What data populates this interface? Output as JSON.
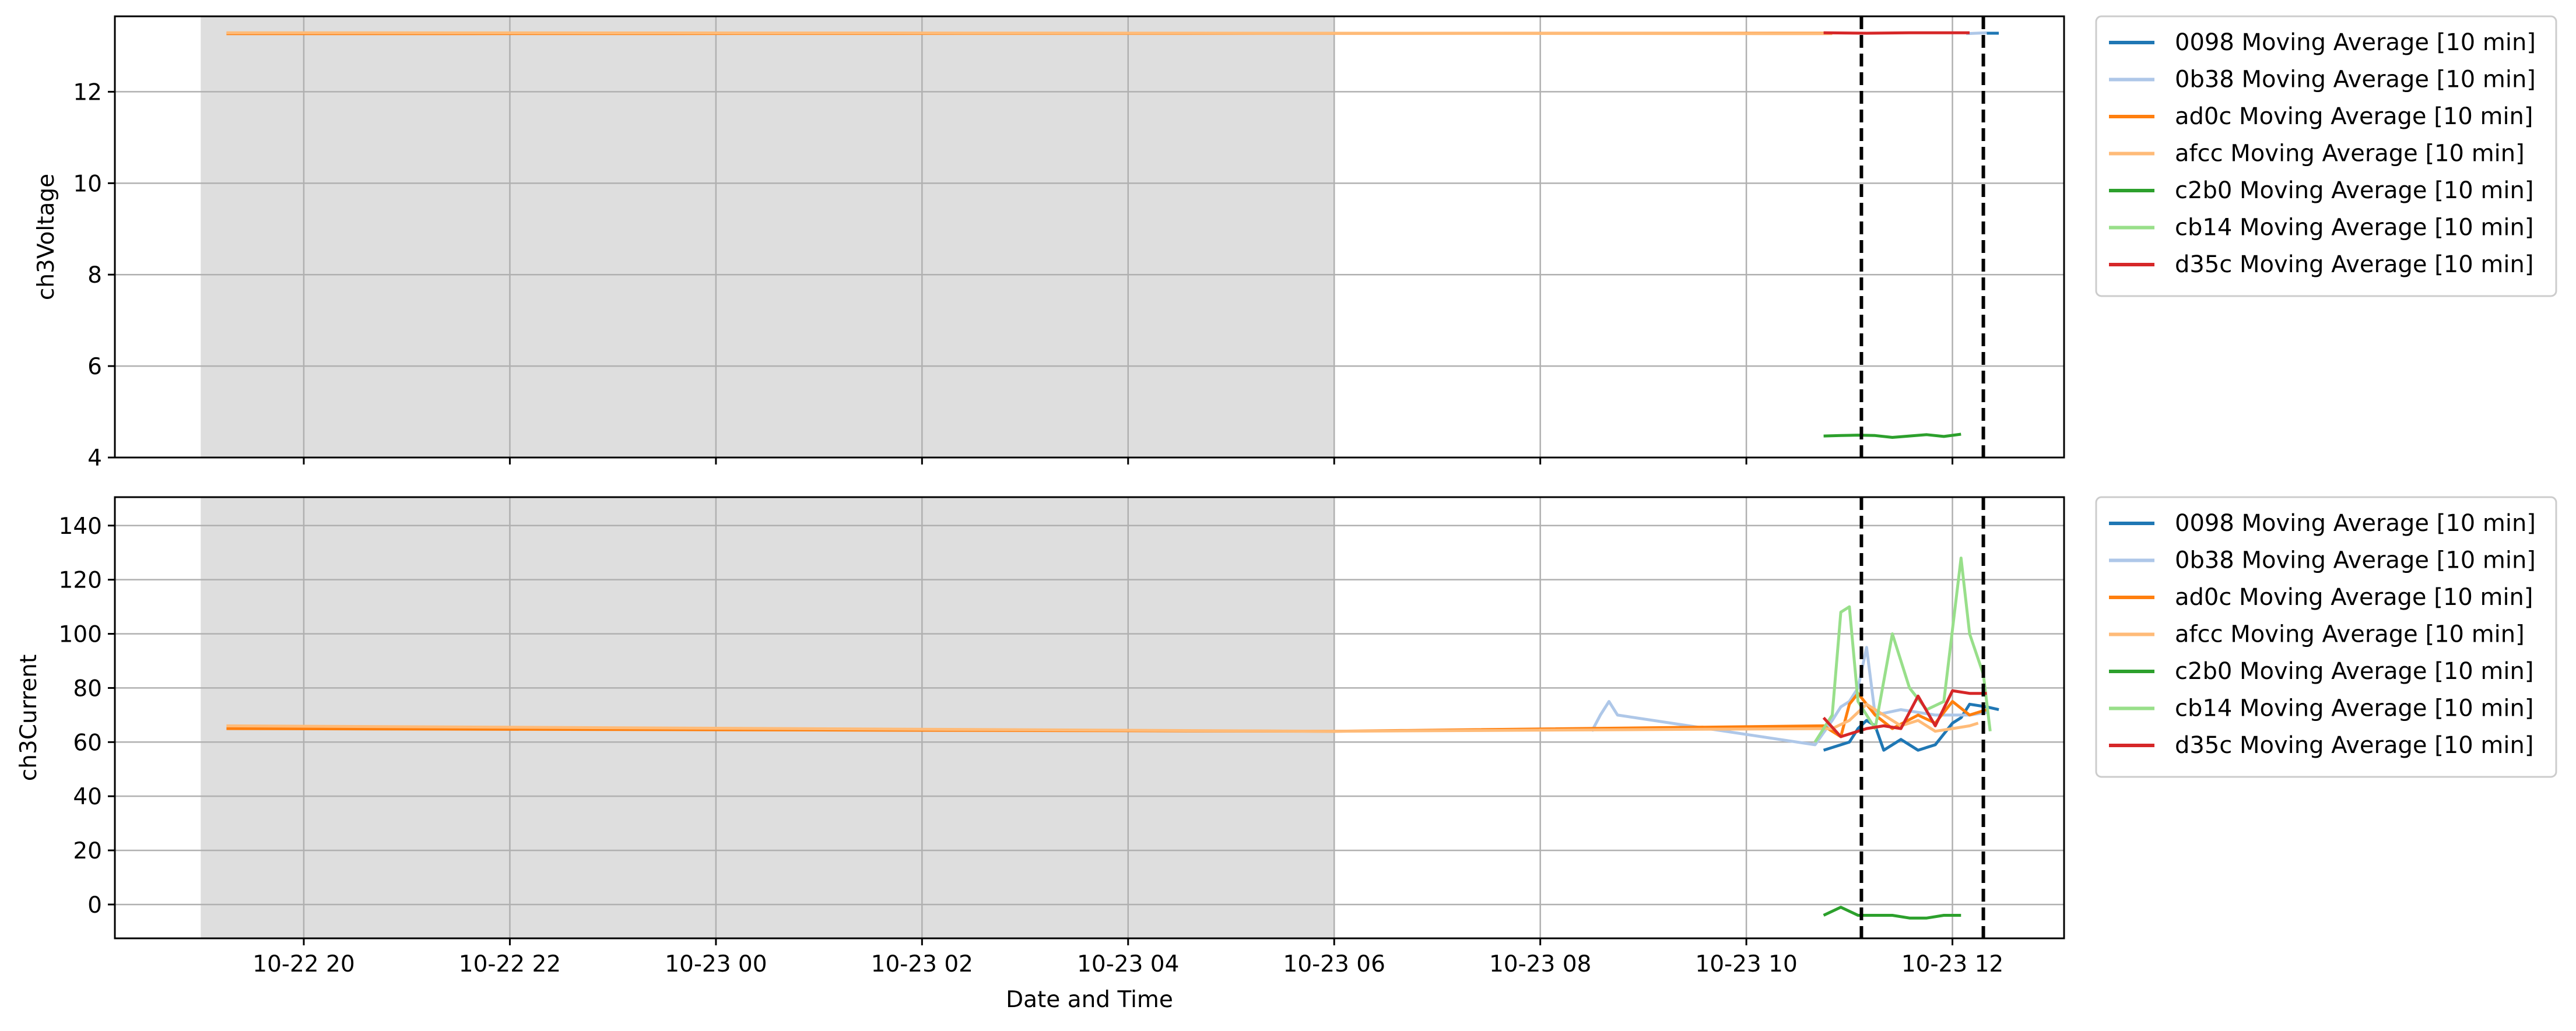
{
  "chart_data": [
    {
      "type": "line",
      "ylabel": "ch3Voltage",
      "xlabel": "",
      "ylim": [
        4.0,
        13.65
      ],
      "yticks": [
        4,
        6,
        8,
        10,
        12
      ],
      "grid": true,
      "shaded_region": {
        "start": "10-22 19:00",
        "end": "10-23 06:00",
        "color": "#dedede"
      },
      "vlines": [
        "10-23 11:07",
        "10-23 12:18"
      ],
      "legend_position": "outside-right",
      "series": [
        {
          "name": "0098 Moving Average [10 min]",
          "color": "#1f77b4",
          "points": [
            [
              "10-23 12:20",
              13.28
            ],
            [
              "10-23 12:27",
              13.28
            ]
          ]
        },
        {
          "name": "0b38 Moving Average [10 min]",
          "color": "#aec7e8",
          "points": [
            [
              "10-23 12:08",
              13.27
            ],
            [
              "10-23 12:20",
              13.29
            ]
          ]
        },
        {
          "name": "ad0c Moving Average [10 min]",
          "color": "#ff7f0e",
          "points": [
            [
              "10-22 19:15",
              13.27
            ],
            [
              "10-23 10:50",
              13.28
            ]
          ]
        },
        {
          "name": "afcc Moving Average [10 min]",
          "color": "#ffbb78",
          "points": [
            [
              "10-22 19:15",
              13.29
            ],
            [
              "10-23 06:00",
              13.28
            ],
            [
              "10-23 10:50",
              13.27
            ]
          ]
        },
        {
          "name": "c2b0 Moving Average [10 min]",
          "color": "#2ca02c",
          "points": [
            [
              "10-23 10:45",
              4.47
            ],
            [
              "10-23 10:55",
              4.48
            ],
            [
              "10-23 11:05",
              4.49
            ],
            [
              "10-23 11:15",
              4.48
            ],
            [
              "10-23 11:25",
              4.44
            ],
            [
              "10-23 11:35",
              4.47
            ],
            [
              "10-23 11:45",
              4.5
            ],
            [
              "10-23 11:55",
              4.46
            ],
            [
              "10-23 12:05",
              4.51
            ]
          ]
        },
        {
          "name": "cb14 Moving Average [10 min]",
          "color": "#98df8a",
          "points": []
        },
        {
          "name": "d35c Moving Average [10 min]",
          "color": "#d62728",
          "points": [
            [
              "10-23 10:45",
              13.29
            ],
            [
              "10-23 11:10",
              13.28
            ],
            [
              "10-23 11:35",
              13.29
            ],
            [
              "10-23 12:10",
              13.29
            ]
          ]
        }
      ]
    },
    {
      "type": "line",
      "ylabel": "ch3Current",
      "xlabel": "Date and Time",
      "ylim": [
        -12.5,
        150.5
      ],
      "yticks": [
        0,
        20,
        40,
        60,
        80,
        100,
        120,
        140
      ],
      "grid": true,
      "x_ticks": [
        "10-22 20",
        "10-22 22",
        "10-23 00",
        "10-23 02",
        "10-23 04",
        "10-23 06",
        "10-23 08",
        "10-23 10",
        "10-23 12"
      ],
      "xlim": [
        "10-22 18:10",
        "10-23 13:05"
      ],
      "shaded_region": {
        "start": "10-22 19:00",
        "end": "10-23 06:00",
        "color": "#dedede"
      },
      "vlines": [
        "10-23 11:07",
        "10-23 12:18"
      ],
      "legend_position": "outside-right",
      "series": [
        {
          "name": "0098 Moving Average [10 min]",
          "color": "#1f77b4",
          "points": [
            [
              "10-23 10:45",
              57
            ],
            [
              "10-23 11:00",
              60
            ],
            [
              "10-23 11:05",
              65
            ],
            [
              "10-23 11:10",
              68
            ],
            [
              "10-23 11:15",
              66
            ],
            [
              "10-23 11:20",
              57
            ],
            [
              "10-23 11:30",
              61
            ],
            [
              "10-23 11:40",
              57
            ],
            [
              "10-23 11:50",
              59
            ],
            [
              "10-23 12:00",
              67
            ],
            [
              "10-23 12:05",
              69
            ],
            [
              "10-23 12:10",
              74
            ],
            [
              "10-23 12:20",
              73
            ],
            [
              "10-23 12:27",
              72
            ]
          ]
        },
        {
          "name": "0b38 Moving Average [10 min]",
          "color": "#aec7e8",
          "points": [
            [
              "10-23 08:30",
              64
            ],
            [
              "10-23 08:35",
              70
            ],
            [
              "10-23 08:40",
              75
            ],
            [
              "10-23 08:45",
              70
            ],
            [
              "10-23 10:40",
              59
            ],
            [
              "10-23 10:50",
              68
            ],
            [
              "10-23 10:55",
              73
            ],
            [
              "10-23 11:00",
              75
            ],
            [
              "10-23 11:05",
              80
            ],
            [
              "10-23 11:10",
              95
            ],
            [
              "10-23 11:15",
              70
            ],
            [
              "10-23 11:30",
              72
            ],
            [
              "10-23 11:50",
              70
            ],
            [
              "10-23 12:10",
              70
            ],
            [
              "10-23 12:20",
              71
            ]
          ]
        },
        {
          "name": "ad0c Moving Average [10 min]",
          "color": "#ff7f0e",
          "points": [
            [
              "10-22 19:15",
              65
            ],
            [
              "10-23 06:00",
              64
            ],
            [
              "10-23 10:45",
              66
            ],
            [
              "10-23 10:55",
              62
            ],
            [
              "10-23 11:00",
              74
            ],
            [
              "10-23 11:05",
              78
            ],
            [
              "10-23 11:15",
              70
            ],
            [
              "10-23 11:25",
              65
            ],
            [
              "10-23 11:40",
              70
            ],
            [
              "10-23 11:50",
              67
            ],
            [
              "10-23 12:00",
              75
            ],
            [
              "10-23 12:10",
              70
            ],
            [
              "10-23 12:20",
              72
            ]
          ]
        },
        {
          "name": "afcc Moving Average [10 min]",
          "color": "#ffbb78",
          "points": [
            [
              "10-22 19:15",
              66
            ],
            [
              "10-23 06:00",
              64
            ],
            [
              "10-23 10:50",
              65
            ],
            [
              "10-23 11:00",
              68
            ],
            [
              "10-23 11:10",
              74
            ],
            [
              "10-23 11:20",
              70
            ],
            [
              "10-23 11:30",
              66
            ],
            [
              "10-23 11:40",
              68
            ],
            [
              "10-23 11:50",
              64
            ],
            [
              "10-23 12:00",
              65
            ],
            [
              "10-23 12:10",
              66
            ],
            [
              "10-23 12:15",
              67
            ]
          ]
        },
        {
          "name": "c2b0 Moving Average [10 min]",
          "color": "#2ca02c",
          "points": [
            [
              "10-23 10:45",
              -4
            ],
            [
              "10-23 10:55",
              -1
            ],
            [
              "10-23 11:05",
              -4
            ],
            [
              "10-23 11:15",
              -4
            ],
            [
              "10-23 11:25",
              -4
            ],
            [
              "10-23 11:35",
              -5
            ],
            [
              "10-23 11:45",
              -5
            ],
            [
              "10-23 11:55",
              -4
            ],
            [
              "10-23 12:05",
              -4
            ]
          ]
        },
        {
          "name": "cb14 Moving Average [10 min]",
          "color": "#98df8a",
          "points": [
            [
              "10-23 10:40",
              60
            ],
            [
              "10-23 10:50",
              70
            ],
            [
              "10-23 10:55",
              108
            ],
            [
              "10-23 11:00",
              110
            ],
            [
              "10-23 11:05",
              75
            ],
            [
              "10-23 11:15",
              65
            ],
            [
              "10-23 11:25",
              100
            ],
            [
              "10-23 11:35",
              80
            ],
            [
              "10-23 11:45",
              72
            ],
            [
              "10-23 11:55",
              75
            ],
            [
              "10-23 12:05",
              128
            ],
            [
              "10-23 12:10",
              100
            ],
            [
              "10-23 12:18",
              85
            ],
            [
              "10-23 12:22",
              64
            ]
          ]
        },
        {
          "name": "d35c Moving Average [10 min]",
          "color": "#d62728",
          "points": [
            [
              "10-23 10:45",
              69
            ],
            [
              "10-23 10:55",
              62
            ],
            [
              "10-23 11:00",
              63
            ],
            [
              "10-23 11:10",
              65
            ],
            [
              "10-23 11:20",
              66
            ],
            [
              "10-23 11:30",
              65
            ],
            [
              "10-23 11:40",
              77
            ],
            [
              "10-23 11:50",
              66
            ],
            [
              "10-23 12:00",
              79
            ],
            [
              "10-23 12:10",
              78
            ],
            [
              "10-23 12:20",
              78
            ]
          ]
        }
      ]
    }
  ]
}
